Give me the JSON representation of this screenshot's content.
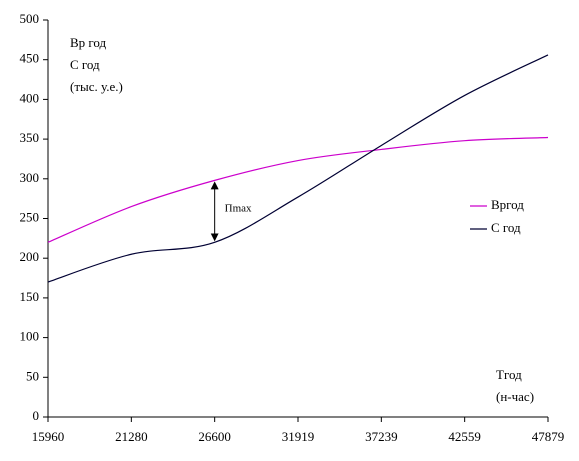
{
  "chart_data": {
    "type": "line",
    "x": [
      15960,
      21280,
      26600,
      31919,
      37239,
      42559,
      47879
    ],
    "series": [
      {
        "name": "Вргод",
        "color": "#cc00cc",
        "values": [
          220,
          265,
          298,
          323,
          337,
          348,
          352
        ]
      },
      {
        "name": "С год",
        "color": "#000033",
        "values": [
          170,
          205,
          220,
          277,
          342,
          405,
          456
        ]
      }
    ],
    "xlim": [
      15960,
      47879
    ],
    "xticks": [
      15960,
      21280,
      26600,
      31919,
      37239,
      42559,
      47879
    ],
    "ylim": [
      0,
      500
    ],
    "yticks": [
      0,
      50,
      100,
      150,
      200,
      250,
      300,
      350,
      400,
      450,
      500
    ],
    "grid": false,
    "legend": "right",
    "annotations": {
      "y_label": [
        "Вр год",
        "С год",
        "(тыс. у.е.)"
      ],
      "x_label": [
        "Тгод",
        "(н-час)"
      ],
      "gap": "Пmax"
    }
  }
}
